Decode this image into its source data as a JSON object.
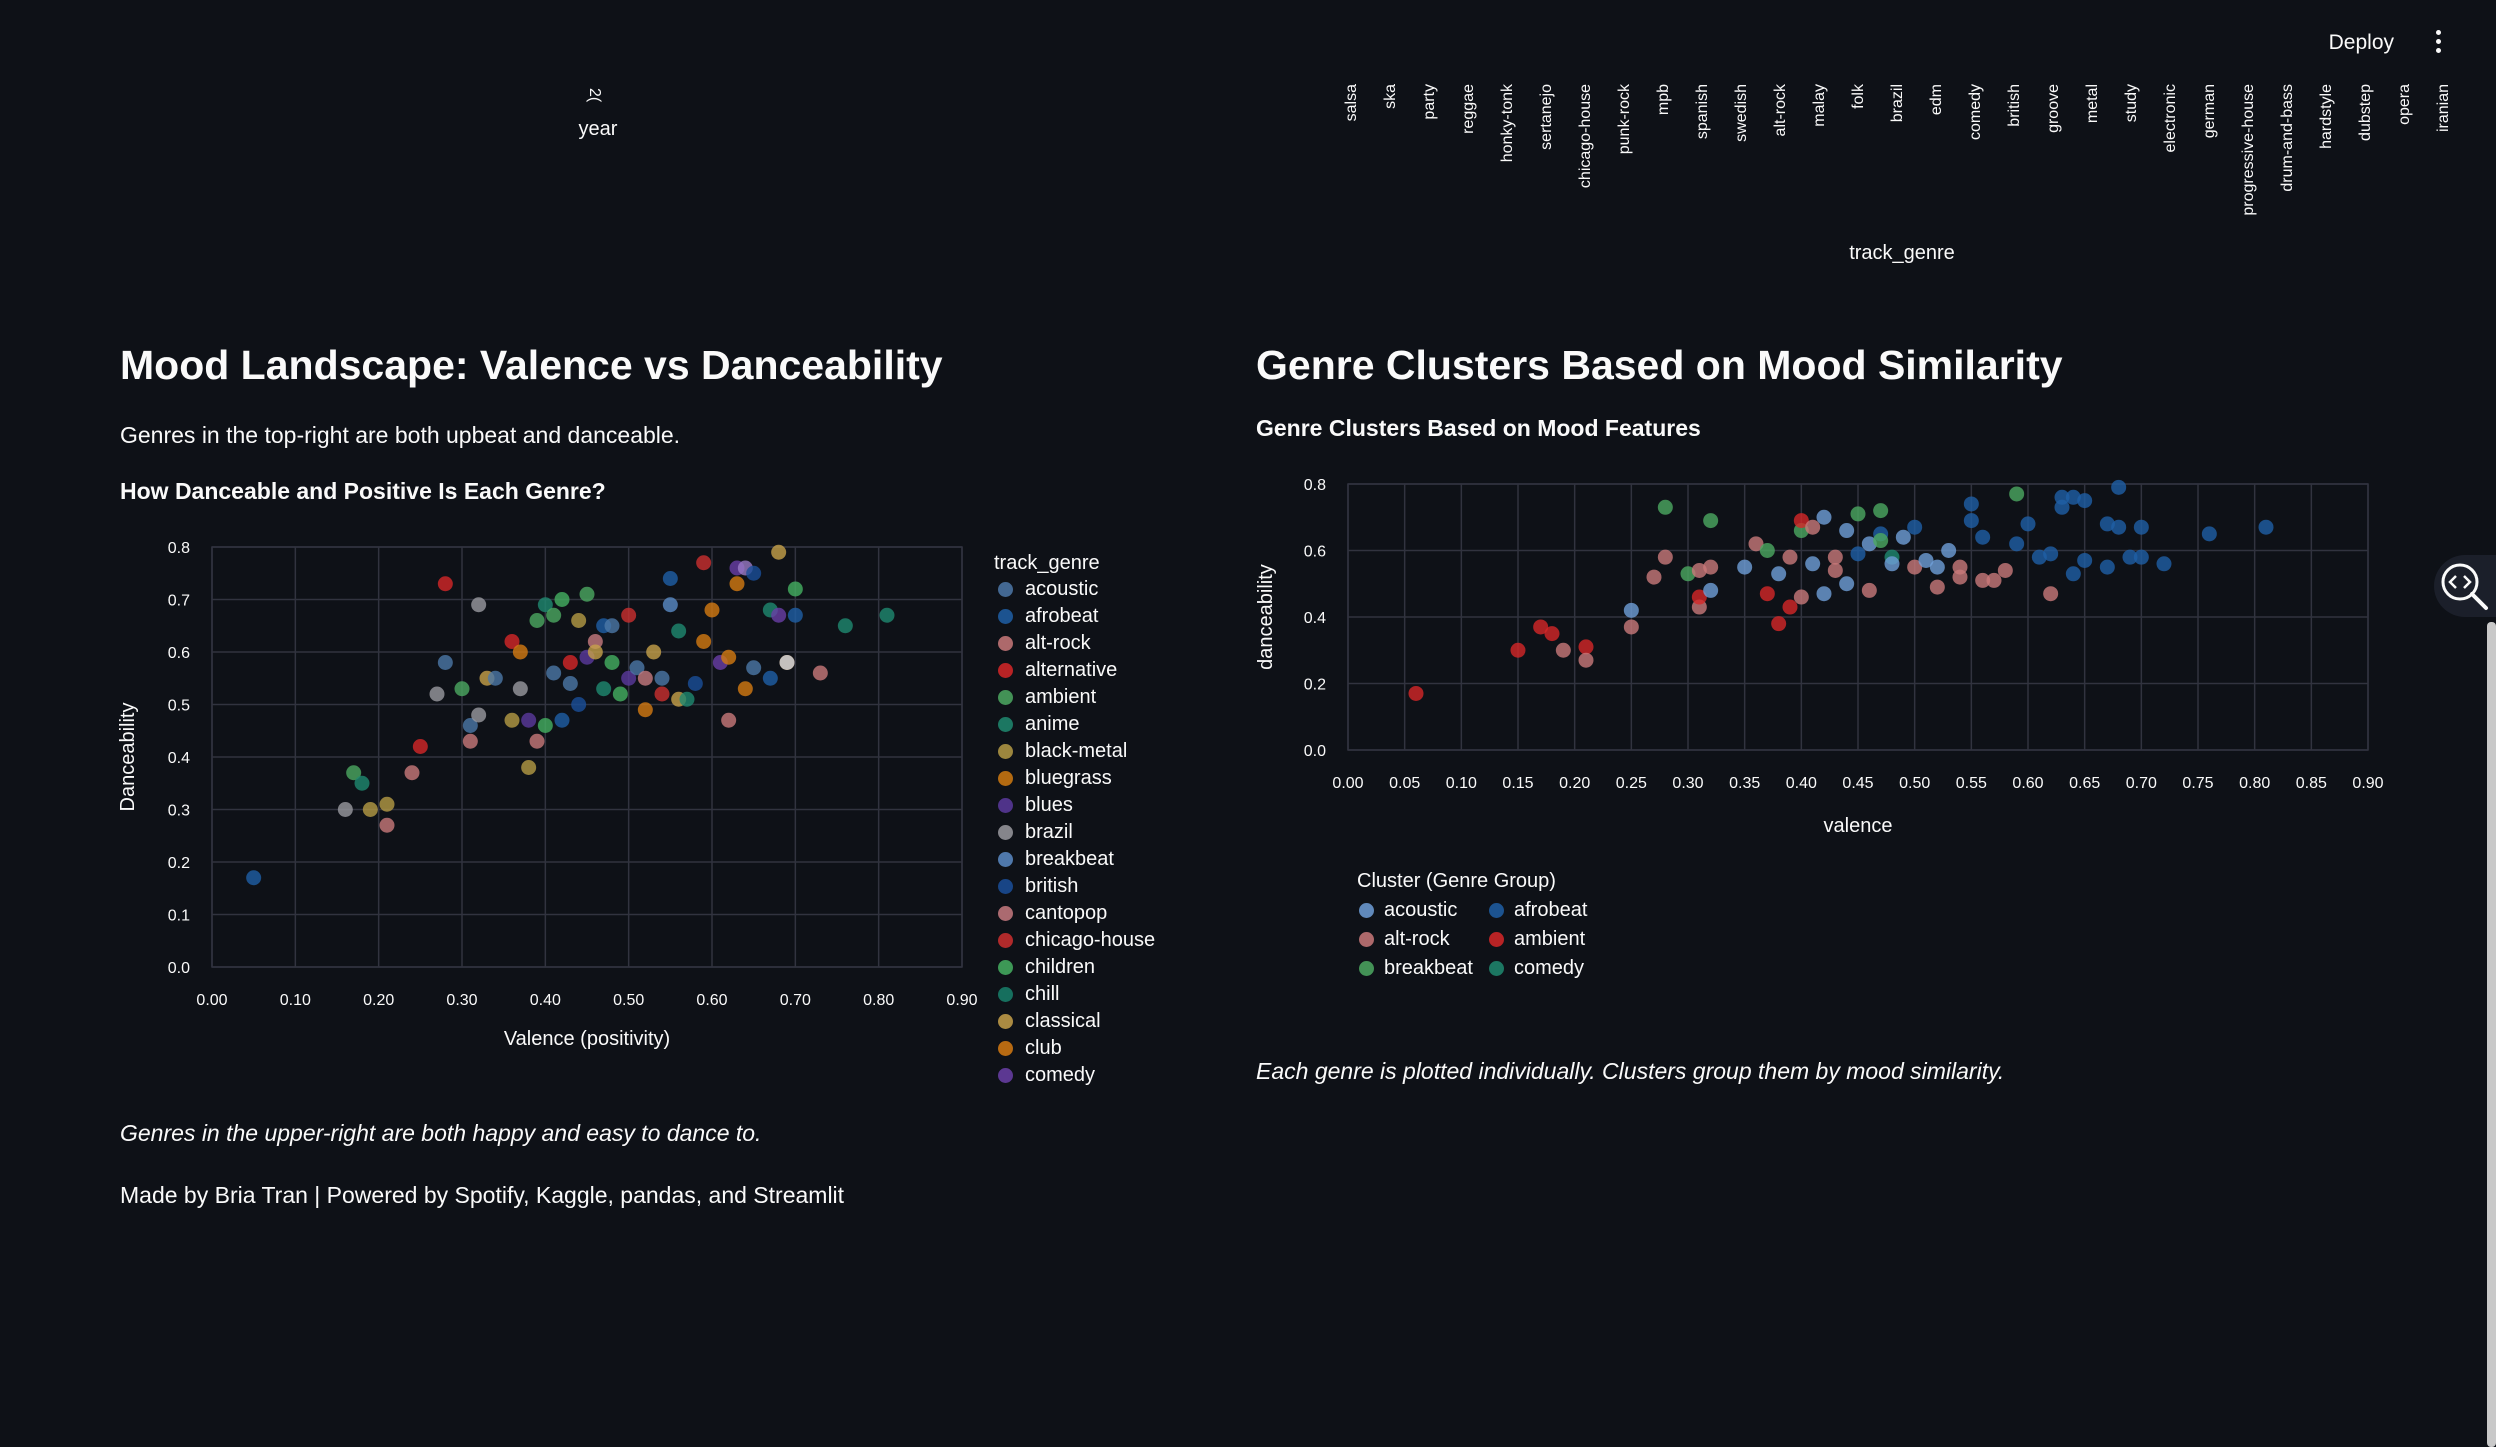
{
  "header": {
    "deploy_label": "Deploy",
    "menu_icon": "kebab-menu-icon"
  },
  "top_partial": {
    "year_axis_label": "year",
    "year_tick_partial": "2(",
    "genre_axis_label": "track_genre",
    "genre_ticks": [
      "salsa",
      "ska",
      "party",
      "reggae",
      "honky-tonk",
      "sertanejo",
      "chicago-house",
      "punk-rock",
      "mpb",
      "spanish",
      "swedish",
      "alt-rock",
      "malay",
      "folk",
      "brazil",
      "edm",
      "comedy",
      "british",
      "groove",
      "metal",
      "study",
      "electronic",
      "german",
      "progressive-house",
      "drum-and-bass",
      "hardstyle",
      "dubstep",
      "opera",
      "iranian"
    ]
  },
  "left": {
    "heading": "Mood Landscape: Valence vs Danceability",
    "subtitle": "Genres in the top-right are both upbeat and danceable.",
    "caption": "Genres in the upper-right are both happy and easy to dance to.",
    "footer": "Made by Bria Tran | Powered by Spotify, Kaggle, pandas, and Streamlit"
  },
  "right": {
    "heading": "Genre Clusters Based on Mood Similarity",
    "caption": "Each genre is plotted individually. Clusters group them by mood similarity."
  },
  "colors": {
    "background": "#0e1117",
    "text": "#fafafa",
    "grid": "#31333f"
  },
  "chart_data": [
    {
      "type": "scatter",
      "title": "How Danceable and Positive Is Each Genre?",
      "xlabel": "Valence (positivity)",
      "ylabel": "Danceability",
      "xlim": [
        0.0,
        0.9
      ],
      "ylim": [
        0.0,
        0.8
      ],
      "xticks": [
        0.0,
        0.1,
        0.2,
        0.3,
        0.4,
        0.5,
        0.6,
        0.7,
        0.8,
        0.9
      ],
      "yticks": [
        0.0,
        0.1,
        0.2,
        0.3,
        0.4,
        0.5,
        0.6,
        0.7,
        0.8
      ],
      "legend_title": "track_genre",
      "legend_location": "right",
      "legend": [
        {
          "name": "acoustic",
          "color": "#4c78a8"
        },
        {
          "name": "afrobeat",
          "color": "#1f5fa6"
        },
        {
          "name": "alt-rock",
          "color": "#c9797a"
        },
        {
          "name": "alternative",
          "color": "#d62728"
        },
        {
          "name": "ambient",
          "color": "#4ca962"
        },
        {
          "name": "anime",
          "color": "#1f8a70"
        },
        {
          "name": "black-metal",
          "color": "#b59b45"
        },
        {
          "name": "bluegrass",
          "color": "#d07a10"
        },
        {
          "name": "blues",
          "color": "#5b3a9e"
        },
        {
          "name": "brazil",
          "color": "#9a9aa0"
        },
        {
          "name": "breakbeat",
          "color": "#5a8bc6"
        },
        {
          "name": "british",
          "color": "#1a4f9a"
        },
        {
          "name": "cantopop",
          "color": "#c77a80"
        },
        {
          "name": "chicago-house",
          "color": "#cc2f2f"
        },
        {
          "name": "children",
          "color": "#45b061"
        },
        {
          "name": "chill",
          "color": "#17806b"
        },
        {
          "name": "classical",
          "color": "#c7a14a"
        },
        {
          "name": "club",
          "color": "#d57a12"
        },
        {
          "name": "comedy",
          "color": "#6a3fa8"
        }
      ],
      "points": [
        {
          "x": 0.05,
          "y": 0.17,
          "c": "#1f5fa6"
        },
        {
          "x": 0.16,
          "y": 0.3,
          "c": "#9a9aa0"
        },
        {
          "x": 0.17,
          "y": 0.37,
          "c": "#4ca962"
        },
        {
          "x": 0.18,
          "y": 0.35,
          "c": "#1f8a70"
        },
        {
          "x": 0.19,
          "y": 0.3,
          "c": "#b59b45"
        },
        {
          "x": 0.21,
          "y": 0.31,
          "c": "#b59b45"
        },
        {
          "x": 0.21,
          "y": 0.27,
          "c": "#c9797a"
        },
        {
          "x": 0.24,
          "y": 0.37,
          "c": "#c9797a"
        },
        {
          "x": 0.25,
          "y": 0.42,
          "c": "#d62728"
        },
        {
          "x": 0.27,
          "y": 0.52,
          "c": "#9a9aa0"
        },
        {
          "x": 0.28,
          "y": 0.58,
          "c": "#4c78a8"
        },
        {
          "x": 0.28,
          "y": 0.73,
          "c": "#d62728"
        },
        {
          "x": 0.3,
          "y": 0.53,
          "c": "#4ca962"
        },
        {
          "x": 0.31,
          "y": 0.43,
          "c": "#c9797a"
        },
        {
          "x": 0.31,
          "y": 0.46,
          "c": "#4c78a8"
        },
        {
          "x": 0.32,
          "y": 0.69,
          "c": "#9a9aa0"
        },
        {
          "x": 0.32,
          "y": 0.48,
          "c": "#9a9aa0"
        },
        {
          "x": 0.33,
          "y": 0.55,
          "c": "#c7a14a"
        },
        {
          "x": 0.34,
          "y": 0.55,
          "c": "#4c78a8"
        },
        {
          "x": 0.36,
          "y": 0.62,
          "c": "#d62728"
        },
        {
          "x": 0.36,
          "y": 0.47,
          "c": "#b59b45"
        },
        {
          "x": 0.37,
          "y": 0.6,
          "c": "#d57a12"
        },
        {
          "x": 0.37,
          "y": 0.53,
          "c": "#9a9aa0"
        },
        {
          "x": 0.38,
          "y": 0.47,
          "c": "#5b3a9e"
        },
        {
          "x": 0.38,
          "y": 0.38,
          "c": "#b59b45"
        },
        {
          "x": 0.39,
          "y": 0.43,
          "c": "#c9797a"
        },
        {
          "x": 0.39,
          "y": 0.66,
          "c": "#4ca962"
        },
        {
          "x": 0.4,
          "y": 0.69,
          "c": "#1f8a70"
        },
        {
          "x": 0.4,
          "y": 0.46,
          "c": "#45b061"
        },
        {
          "x": 0.41,
          "y": 0.56,
          "c": "#4c78a8"
        },
        {
          "x": 0.41,
          "y": 0.67,
          "c": "#4ca962"
        },
        {
          "x": 0.42,
          "y": 0.7,
          "c": "#45b061"
        },
        {
          "x": 0.42,
          "y": 0.47,
          "c": "#1f5fa6"
        },
        {
          "x": 0.43,
          "y": 0.58,
          "c": "#d62728"
        },
        {
          "x": 0.43,
          "y": 0.54,
          "c": "#4c78a8"
        },
        {
          "x": 0.44,
          "y": 0.66,
          "c": "#b59b45"
        },
        {
          "x": 0.44,
          "y": 0.5,
          "c": "#1a4f9a"
        },
        {
          "x": 0.45,
          "y": 0.59,
          "c": "#5b3a9e"
        },
        {
          "x": 0.45,
          "y": 0.71,
          "c": "#4ca962"
        },
        {
          "x": 0.46,
          "y": 0.62,
          "c": "#c77a80"
        },
        {
          "x": 0.46,
          "y": 0.6,
          "c": "#c7a14a"
        },
        {
          "x": 0.47,
          "y": 0.65,
          "c": "#1f5fa6"
        },
        {
          "x": 0.47,
          "y": 0.53,
          "c": "#1f8a70"
        },
        {
          "x": 0.48,
          "y": 0.58,
          "c": "#45b061"
        },
        {
          "x": 0.48,
          "y": 0.65,
          "c": "#4c78a8"
        },
        {
          "x": 0.49,
          "y": 0.52,
          "c": "#45b061"
        },
        {
          "x": 0.5,
          "y": 0.67,
          "c": "#cc2f2f"
        },
        {
          "x": 0.5,
          "y": 0.55,
          "c": "#5b3a9e"
        },
        {
          "x": 0.51,
          "y": 0.57,
          "c": "#4c78a8"
        },
        {
          "x": 0.52,
          "y": 0.49,
          "c": "#d57a12"
        },
        {
          "x": 0.52,
          "y": 0.55,
          "c": "#c77a80"
        },
        {
          "x": 0.53,
          "y": 0.6,
          "c": "#c7a14a"
        },
        {
          "x": 0.54,
          "y": 0.55,
          "c": "#4c78a8"
        },
        {
          "x": 0.54,
          "y": 0.52,
          "c": "#cc2f2f"
        },
        {
          "x": 0.55,
          "y": 0.74,
          "c": "#1f5fa6"
        },
        {
          "x": 0.55,
          "y": 0.69,
          "c": "#5a8bc6"
        },
        {
          "x": 0.56,
          "y": 0.51,
          "c": "#c7a14a"
        },
        {
          "x": 0.56,
          "y": 0.64,
          "c": "#1f8a70"
        },
        {
          "x": 0.57,
          "y": 0.51,
          "c": "#1f8a70"
        },
        {
          "x": 0.58,
          "y": 0.54,
          "c": "#1a4f9a"
        },
        {
          "x": 0.59,
          "y": 0.62,
          "c": "#d57a12"
        },
        {
          "x": 0.59,
          "y": 0.77,
          "c": "#cc2f2f"
        },
        {
          "x": 0.6,
          "y": 0.68,
          "c": "#d57a12"
        },
        {
          "x": 0.61,
          "y": 0.58,
          "c": "#6a3fa8"
        },
        {
          "x": 0.62,
          "y": 0.47,
          "c": "#c9797a"
        },
        {
          "x": 0.62,
          "y": 0.59,
          "c": "#d57a12"
        },
        {
          "x": 0.63,
          "y": 0.73,
          "c": "#d57a12"
        },
        {
          "x": 0.63,
          "y": 0.76,
          "c": "#6a3fa8"
        },
        {
          "x": 0.64,
          "y": 0.53,
          "c": "#d57a12"
        },
        {
          "x": 0.64,
          "y": 0.76,
          "c": "#9a7ac6"
        },
        {
          "x": 0.65,
          "y": 0.57,
          "c": "#4c78a8"
        },
        {
          "x": 0.65,
          "y": 0.75,
          "c": "#1a4f9a"
        },
        {
          "x": 0.67,
          "y": 0.55,
          "c": "#1f5fa6"
        },
        {
          "x": 0.67,
          "y": 0.68,
          "c": "#1f8a70"
        },
        {
          "x": 0.68,
          "y": 0.79,
          "c": "#c7a14a"
        },
        {
          "x": 0.68,
          "y": 0.67,
          "c": "#6a3fa8"
        },
        {
          "x": 0.69,
          "y": 0.58,
          "c": "#d57a12"
        },
        {
          "x": 0.69,
          "y": 0.58,
          "c": "#cad7ea"
        },
        {
          "x": 0.7,
          "y": 0.72,
          "c": "#45b061"
        },
        {
          "x": 0.7,
          "y": 0.67,
          "c": "#1f5fa6"
        },
        {
          "x": 0.73,
          "y": 0.56,
          "c": "#c9797a"
        },
        {
          "x": 0.76,
          "y": 0.65,
          "c": "#1f8a70"
        },
        {
          "x": 0.81,
          "y": 0.67,
          "c": "#1f8a70"
        }
      ]
    },
    {
      "type": "scatter",
      "title": "Genre Clusters Based on Mood Features",
      "xlabel": "valence",
      "ylabel": "danceability",
      "xlim": [
        0.0,
        0.9
      ],
      "ylim": [
        0.0,
        0.8
      ],
      "xticks": [
        0.0,
        0.05,
        0.1,
        0.15,
        0.2,
        0.25,
        0.3,
        0.35,
        0.4,
        0.45,
        0.5,
        0.55,
        0.6,
        0.65,
        0.7,
        0.75,
        0.8,
        0.85,
        0.9
      ],
      "yticks": [
        0.0,
        0.2,
        0.4,
        0.6,
        0.8
      ],
      "legend_title": "Cluster (Genre Group)",
      "legend_location": "bottom-left",
      "legend": [
        {
          "name": "acoustic",
          "color": "#6f9fd8"
        },
        {
          "name": "afrobeat",
          "color": "#1f5fa6"
        },
        {
          "name": "alt-rock",
          "color": "#c9797a"
        },
        {
          "name": "ambient",
          "color": "#d62728"
        },
        {
          "name": "breakbeat",
          "color": "#4ca962"
        },
        {
          "name": "comedy",
          "color": "#1f8a70"
        }
      ],
      "points": [
        {
          "x": 0.06,
          "y": 0.17,
          "c": "#d62728"
        },
        {
          "x": 0.15,
          "y": 0.3,
          "c": "#d62728"
        },
        {
          "x": 0.17,
          "y": 0.37,
          "c": "#d62728"
        },
        {
          "x": 0.18,
          "y": 0.35,
          "c": "#d62728"
        },
        {
          "x": 0.19,
          "y": 0.3,
          "c": "#c9797a"
        },
        {
          "x": 0.21,
          "y": 0.31,
          "c": "#d62728"
        },
        {
          "x": 0.21,
          "y": 0.27,
          "c": "#c9797a"
        },
        {
          "x": 0.25,
          "y": 0.37,
          "c": "#c9797a"
        },
        {
          "x": 0.25,
          "y": 0.42,
          "c": "#6f9fd8"
        },
        {
          "x": 0.27,
          "y": 0.52,
          "c": "#c9797a"
        },
        {
          "x": 0.28,
          "y": 0.58,
          "c": "#c9797a"
        },
        {
          "x": 0.28,
          "y": 0.73,
          "c": "#4ca962"
        },
        {
          "x": 0.3,
          "y": 0.53,
          "c": "#4ca962"
        },
        {
          "x": 0.31,
          "y": 0.43,
          "c": "#c9797a"
        },
        {
          "x": 0.31,
          "y": 0.46,
          "c": "#d62728"
        },
        {
          "x": 0.32,
          "y": 0.69,
          "c": "#4ca962"
        },
        {
          "x": 0.32,
          "y": 0.48,
          "c": "#6f9fd8"
        },
        {
          "x": 0.31,
          "y": 0.54,
          "c": "#c9797a"
        },
        {
          "x": 0.32,
          "y": 0.55,
          "c": "#c9797a"
        },
        {
          "x": 0.35,
          "y": 0.55,
          "c": "#6f9fd8"
        },
        {
          "x": 0.36,
          "y": 0.62,
          "c": "#c9797a"
        },
        {
          "x": 0.37,
          "y": 0.6,
          "c": "#4ca962"
        },
        {
          "x": 0.37,
          "y": 0.47,
          "c": "#d62728"
        },
        {
          "x": 0.38,
          "y": 0.53,
          "c": "#6f9fd8"
        },
        {
          "x": 0.38,
          "y": 0.38,
          "c": "#d62728"
        },
        {
          "x": 0.39,
          "y": 0.43,
          "c": "#d62728"
        },
        {
          "x": 0.39,
          "y": 0.58,
          "c": "#c9797a"
        },
        {
          "x": 0.4,
          "y": 0.66,
          "c": "#4ca962"
        },
        {
          "x": 0.4,
          "y": 0.69,
          "c": "#d62728"
        },
        {
          "x": 0.4,
          "y": 0.46,
          "c": "#c9797a"
        },
        {
          "x": 0.41,
          "y": 0.56,
          "c": "#6f9fd8"
        },
        {
          "x": 0.41,
          "y": 0.67,
          "c": "#c9797a"
        },
        {
          "x": 0.42,
          "y": 0.7,
          "c": "#6f9fd8"
        },
        {
          "x": 0.42,
          "y": 0.47,
          "c": "#6f9fd8"
        },
        {
          "x": 0.43,
          "y": 0.58,
          "c": "#c9797a"
        },
        {
          "x": 0.43,
          "y": 0.54,
          "c": "#c9797a"
        },
        {
          "x": 0.44,
          "y": 0.66,
          "c": "#6f9fd8"
        },
        {
          "x": 0.44,
          "y": 0.5,
          "c": "#6f9fd8"
        },
        {
          "x": 0.45,
          "y": 0.59,
          "c": "#1f5fa6"
        },
        {
          "x": 0.45,
          "y": 0.71,
          "c": "#4ca962"
        },
        {
          "x": 0.46,
          "y": 0.62,
          "c": "#6f9fd8"
        },
        {
          "x": 0.46,
          "y": 0.48,
          "c": "#c9797a"
        },
        {
          "x": 0.47,
          "y": 0.65,
          "c": "#1f5fa6"
        },
        {
          "x": 0.47,
          "y": 0.63,
          "c": "#4ca962"
        },
        {
          "x": 0.47,
          "y": 0.72,
          "c": "#4ca962"
        },
        {
          "x": 0.48,
          "y": 0.58,
          "c": "#1f8a70"
        },
        {
          "x": 0.48,
          "y": 0.56,
          "c": "#6f9fd8"
        },
        {
          "x": 0.49,
          "y": 0.64,
          "c": "#6f9fd8"
        },
        {
          "x": 0.5,
          "y": 0.67,
          "c": "#1f5fa6"
        },
        {
          "x": 0.5,
          "y": 0.55,
          "c": "#c9797a"
        },
        {
          "x": 0.51,
          "y": 0.57,
          "c": "#6f9fd8"
        },
        {
          "x": 0.52,
          "y": 0.49,
          "c": "#c9797a"
        },
        {
          "x": 0.52,
          "y": 0.55,
          "c": "#6f9fd8"
        },
        {
          "x": 0.53,
          "y": 0.6,
          "c": "#6f9fd8"
        },
        {
          "x": 0.54,
          "y": 0.55,
          "c": "#c9797a"
        },
        {
          "x": 0.54,
          "y": 0.52,
          "c": "#c9797a"
        },
        {
          "x": 0.55,
          "y": 0.74,
          "c": "#1f5fa6"
        },
        {
          "x": 0.55,
          "y": 0.69,
          "c": "#1f5fa6"
        },
        {
          "x": 0.56,
          "y": 0.51,
          "c": "#c9797a"
        },
        {
          "x": 0.56,
          "y": 0.64,
          "c": "#1f5fa6"
        },
        {
          "x": 0.57,
          "y": 0.51,
          "c": "#c9797a"
        },
        {
          "x": 0.58,
          "y": 0.54,
          "c": "#c9797a"
        },
        {
          "x": 0.59,
          "y": 0.62,
          "c": "#1f5fa6"
        },
        {
          "x": 0.59,
          "y": 0.77,
          "c": "#4ca962"
        },
        {
          "x": 0.6,
          "y": 0.68,
          "c": "#1f5fa6"
        },
        {
          "x": 0.61,
          "y": 0.58,
          "c": "#1f5fa6"
        },
        {
          "x": 0.62,
          "y": 0.47,
          "c": "#c9797a"
        },
        {
          "x": 0.62,
          "y": 0.59,
          "c": "#1f5fa6"
        },
        {
          "x": 0.63,
          "y": 0.73,
          "c": "#1f5fa6"
        },
        {
          "x": 0.63,
          "y": 0.76,
          "c": "#1f5fa6"
        },
        {
          "x": 0.64,
          "y": 0.53,
          "c": "#1f5fa6"
        },
        {
          "x": 0.64,
          "y": 0.76,
          "c": "#1f5fa6"
        },
        {
          "x": 0.65,
          "y": 0.57,
          "c": "#1f5fa6"
        },
        {
          "x": 0.65,
          "y": 0.75,
          "c": "#1f5fa6"
        },
        {
          "x": 0.67,
          "y": 0.55,
          "c": "#1f5fa6"
        },
        {
          "x": 0.67,
          "y": 0.68,
          "c": "#1f5fa6"
        },
        {
          "x": 0.68,
          "y": 0.79,
          "c": "#1f5fa6"
        },
        {
          "x": 0.68,
          "y": 0.67,
          "c": "#1f5fa6"
        },
        {
          "x": 0.69,
          "y": 0.58,
          "c": "#1f5fa6"
        },
        {
          "x": 0.7,
          "y": 0.58,
          "c": "#1f5fa6"
        },
        {
          "x": 0.7,
          "y": 0.67,
          "c": "#1f5fa6"
        },
        {
          "x": 0.72,
          "y": 0.56,
          "c": "#1f5fa6"
        },
        {
          "x": 0.76,
          "y": 0.65,
          "c": "#1f5fa6"
        },
        {
          "x": 0.81,
          "y": 0.67,
          "c": "#1f5fa6"
        }
      ]
    }
  ]
}
